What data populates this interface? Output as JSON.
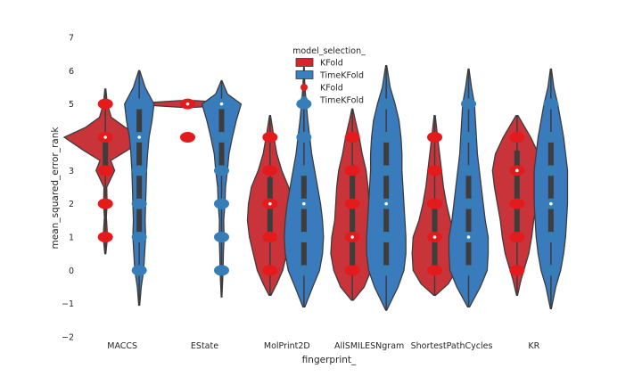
{
  "chart_data": {
    "type": "violin",
    "xlabel": "fingerprint_",
    "ylabel": "mean_squared_error_rank",
    "ylim": [
      -2,
      7
    ],
    "yticks": [
      -2,
      -1,
      0,
      1,
      2,
      3,
      4,
      5,
      6,
      7
    ],
    "grid": false,
    "categories": [
      "MACCS",
      "EState",
      "MolPrint2D",
      "AllSMILESNgram",
      "ShortestPathCycles",
      "KR"
    ],
    "legend": {
      "title": "model_selection_",
      "placement": "top-center",
      "entries": [
        {
          "label": "KFold",
          "marker": "patch",
          "color": "#d62728"
        },
        {
          "label": "TimeKFold",
          "marker": "patch",
          "color": "#3a7fbf"
        },
        {
          "label": "KFold",
          "marker": "point",
          "color": "#e41a1c"
        },
        {
          "label": "TimeKFold",
          "marker": "point",
          "color": "#377eb8"
        }
      ]
    },
    "colors": {
      "KFold_violin": "#c8343a",
      "TimeKFold_violin": "#3a7bbd",
      "KFold_points": "#e41a1c",
      "TimeKFold_points": "#377eb8",
      "box": "#3d3d3d",
      "median": "#ffffff"
    },
    "series": [
      {
        "name": "KFold",
        "violins": [
          {
            "category": "MACCS",
            "min": 0.5,
            "max": 5.45,
            "q1": 3,
            "median": 4,
            "q3": 4,
            "profile": [
              [
                0.5,
                0.005
              ],
              [
                1,
                0.022
              ],
              [
                1.6,
                0.01
              ],
              [
                2,
                0.018
              ],
              [
                2.5,
                0.014
              ],
              [
                3,
                0.095
              ],
              [
                3.3,
                0.055
              ],
              [
                3.6,
                0.22
              ],
              [
                4,
                0.42
              ],
              [
                4.3,
                0.2
              ],
              [
                4.6,
                0.06
              ],
              [
                5,
                0.02
              ],
              [
                5.45,
                0.005
              ]
            ],
            "points": [
              1,
              2,
              3,
              4,
              5
            ]
          },
          {
            "category": "EState",
            "min": 4.9,
            "max": 5.1,
            "q1": 5,
            "median": 5,
            "q3": 5,
            "profile": [
              [
                4.9,
                0.08
              ],
              [
                4.95,
                0.35
              ],
              [
                5,
                0.42
              ],
              [
                5.05,
                0.35
              ],
              [
                5.1,
                0.08
              ]
            ],
            "points": [
              4,
              5
            ]
          },
          {
            "category": "MolPrint2D",
            "min": -0.75,
            "max": 4.65,
            "q1": 1,
            "median": 2,
            "q3": 2.8,
            "profile": [
              [
                -0.75,
                0.01
              ],
              [
                -0.4,
                0.07
              ],
              [
                0,
                0.13
              ],
              [
                0.5,
                0.17
              ],
              [
                1,
                0.21
              ],
              [
                1.5,
                0.23
              ],
              [
                2,
                0.22
              ],
              [
                2.5,
                0.19
              ],
              [
                3,
                0.12
              ],
              [
                3.5,
                0.07
              ],
              [
                4,
                0.04
              ],
              [
                4.65,
                0.005
              ]
            ],
            "points": [
              0,
              1,
              2,
              3,
              4
            ]
          },
          {
            "category": "AllSMILESNgram",
            "min": -0.9,
            "max": 4.85,
            "q1": 0,
            "median": 1,
            "q3": 3,
            "profile": [
              [
                -0.9,
                0.01
              ],
              [
                -0.5,
                0.12
              ],
              [
                0,
                0.19
              ],
              [
                0.5,
                0.22
              ],
              [
                1,
                0.21
              ],
              [
                1.5,
                0.18
              ],
              [
                2,
                0.17
              ],
              [
                2.5,
                0.16
              ],
              [
                3,
                0.14
              ],
              [
                3.5,
                0.1
              ],
              [
                4,
                0.07
              ],
              [
                4.5,
                0.03
              ],
              [
                4.85,
                0.005
              ]
            ],
            "points": [
              0,
              1,
              2,
              3,
              4
            ]
          },
          {
            "category": "ShortestPathCycles",
            "min": -0.75,
            "max": 4.65,
            "q1": 0,
            "median": 1,
            "q3": 2,
            "profile": [
              [
                -0.75,
                0.01
              ],
              [
                -0.4,
                0.14
              ],
              [
                0,
                0.22
              ],
              [
                0.5,
                0.23
              ],
              [
                1,
                0.22
              ],
              [
                1.5,
                0.16
              ],
              [
                2,
                0.12
              ],
              [
                2.5,
                0.09
              ],
              [
                3,
                0.07
              ],
              [
                3.5,
                0.05
              ],
              [
                4,
                0.03
              ],
              [
                4.65,
                0.005
              ]
            ],
            "points": [
              0,
              1,
              2,
              3,
              4
            ]
          },
          {
            "category": "KR",
            "min": -0.75,
            "max": 4.65,
            "q1": 1,
            "median": 3,
            "q3": 3.6,
            "profile": [
              [
                -0.75,
                0.005
              ],
              [
                -0.3,
                0.04
              ],
              [
                0,
                0.07
              ],
              [
                0.5,
                0.12
              ],
              [
                1,
                0.15
              ],
              [
                1.5,
                0.17
              ],
              [
                2,
                0.2
              ],
              [
                2.5,
                0.23
              ],
              [
                3,
                0.25
              ],
              [
                3.5,
                0.22
              ],
              [
                4,
                0.14
              ],
              [
                4.65,
                0.01
              ]
            ],
            "points": [
              0,
              1,
              2,
              3,
              4
            ]
          }
        ]
      },
      {
        "name": "TimeKFold",
        "violins": [
          {
            "category": "MACCS",
            "min": -1.05,
            "max": 6,
            "q1": 1,
            "median": 4,
            "q3": 5,
            "profile": [
              [
                -1.05,
                0.005
              ],
              [
                -0.5,
                0.02
              ],
              [
                0,
                0.045
              ],
              [
                0.5,
                0.055
              ],
              [
                1,
                0.065
              ],
              [
                1.5,
                0.06
              ],
              [
                2,
                0.065
              ],
              [
                2.5,
                0.07
              ],
              [
                3,
                0.075
              ],
              [
                3.5,
                0.085
              ],
              [
                4,
                0.1
              ],
              [
                4.5,
                0.13
              ],
              [
                5,
                0.15
              ],
              [
                5.5,
                0.06
              ],
              [
                6,
                0.005
              ]
            ],
            "points": [
              0,
              1,
              2,
              3,
              4,
              5
            ]
          },
          {
            "category": "EState",
            "min": -0.8,
            "max": 5.7,
            "q1": 3,
            "median": 5,
            "q3": 5,
            "profile": [
              [
                -0.8,
                0.004
              ],
              [
                0,
                0.015
              ],
              [
                0.5,
                0.018
              ],
              [
                1,
                0.025
              ],
              [
                1.5,
                0.022
              ],
              [
                2,
                0.035
              ],
              [
                2.5,
                0.04
              ],
              [
                3,
                0.06
              ],
              [
                3.5,
                0.075
              ],
              [
                4,
                0.11
              ],
              [
                4.5,
                0.15
              ],
              [
                5,
                0.2
              ],
              [
                5.3,
                0.06
              ],
              [
                5.7,
                0.004
              ]
            ],
            "points": [
              0,
              1,
              2,
              3,
              4,
              5
            ]
          },
          {
            "category": "MolPrint2D",
            "min": -1.1,
            "max": 6.1,
            "q1": 0,
            "median": 2,
            "q3": 3,
            "profile": [
              [
                -1.1,
                0.01
              ],
              [
                -0.5,
                0.09
              ],
              [
                0,
                0.16
              ],
              [
                0.5,
                0.19
              ],
              [
                1,
                0.2
              ],
              [
                1.5,
                0.19
              ],
              [
                2,
                0.17
              ],
              [
                2.5,
                0.14
              ],
              [
                3,
                0.11
              ],
              [
                3.5,
                0.08
              ],
              [
                4,
                0.06
              ],
              [
                4.5,
                0.04
              ],
              [
                5,
                0.025
              ],
              [
                5.5,
                0.01
              ],
              [
                6.1,
                0.003
              ]
            ],
            "points": [
              0,
              1,
              2,
              3,
              4,
              5
            ]
          },
          {
            "category": "AllSMILESNgram",
            "min": -1.2,
            "max": 6.15,
            "q1": 0,
            "median": 2,
            "q3": 4,
            "profile": [
              [
                -1.2,
                0.005
              ],
              [
                -0.5,
                0.12
              ],
              [
                0,
                0.18
              ],
              [
                0.5,
                0.2
              ],
              [
                1,
                0.2
              ],
              [
                1.5,
                0.19
              ],
              [
                2,
                0.18
              ],
              [
                2.5,
                0.17
              ],
              [
                3,
                0.16
              ],
              [
                3.5,
                0.16
              ],
              [
                4,
                0.15
              ],
              [
                4.5,
                0.13
              ],
              [
                5,
                0.09
              ],
              [
                5.5,
                0.04
              ],
              [
                6.15,
                0.005
              ]
            ],
            "points": [
              0,
              1,
              2,
              3,
              4,
              5
            ]
          },
          {
            "category": "ShortestPathCycles",
            "min": -1.1,
            "max": 6.05,
            "q1": 0,
            "median": 1,
            "q3": 3,
            "profile": [
              [
                -1.1,
                0.01
              ],
              [
                -0.5,
                0.12
              ],
              [
                0,
                0.19
              ],
              [
                0.5,
                0.2
              ],
              [
                1,
                0.2
              ],
              [
                1.5,
                0.17
              ],
              [
                2,
                0.15
              ],
              [
                2.5,
                0.13
              ],
              [
                3,
                0.11
              ],
              [
                3.5,
                0.09
              ],
              [
                4,
                0.08
              ],
              [
                4.5,
                0.07
              ],
              [
                5,
                0.06
              ],
              [
                5.5,
                0.03
              ],
              [
                6.05,
                0.005
              ]
            ],
            "points": [
              0,
              1,
              2,
              3,
              4,
              5
            ]
          },
          {
            "category": "KR",
            "min": -1.15,
            "max": 6.05,
            "q1": 1,
            "median": 2,
            "q3": 4,
            "profile": [
              [
                -1.15,
                0.005
              ],
              [
                -0.5,
                0.05
              ],
              [
                0,
                0.1
              ],
              [
                0.5,
                0.13
              ],
              [
                1,
                0.15
              ],
              [
                1.5,
                0.16
              ],
              [
                2,
                0.17
              ],
              [
                2.5,
                0.17
              ],
              [
                3,
                0.17
              ],
              [
                3.5,
                0.15
              ],
              [
                4,
                0.13
              ],
              [
                4.5,
                0.1
              ],
              [
                5,
                0.07
              ],
              [
                5.5,
                0.03
              ],
              [
                6.05,
                0.005
              ]
            ],
            "points": [
              0,
              1,
              2,
              3,
              4,
              5
            ]
          }
        ]
      }
    ]
  }
}
